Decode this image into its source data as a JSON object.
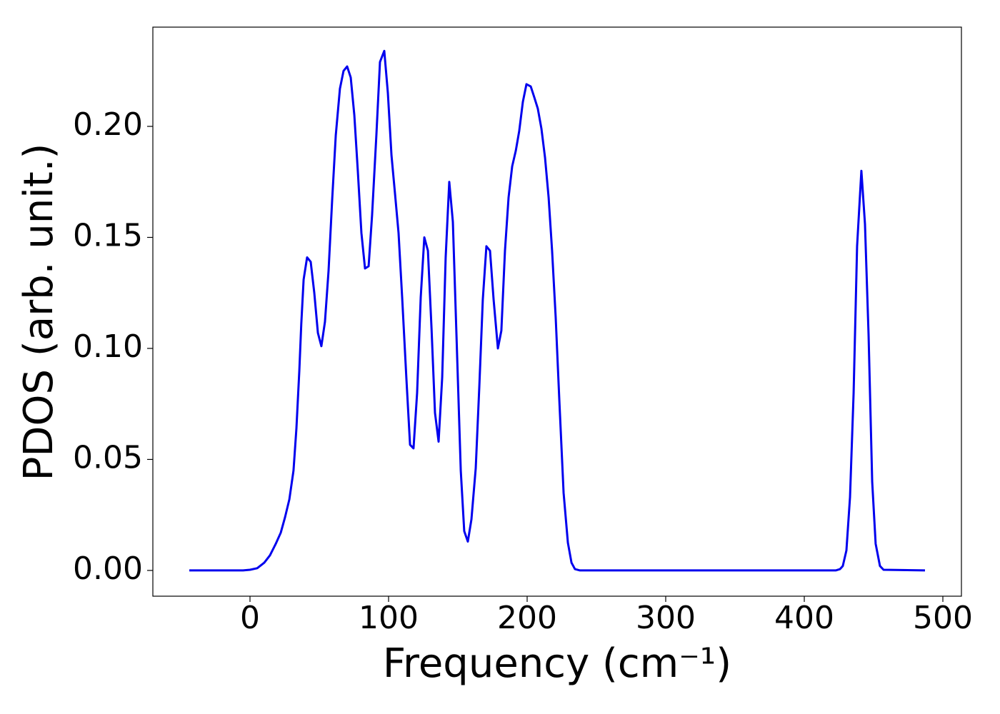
{
  "chart_data": {
    "type": "line",
    "xlabel": "Frequency (cm⁻¹)",
    "ylabel": "PDOS (arb. unit.)",
    "xlim": [
      -70.1,
      513.4
    ],
    "ylim": [
      -0.0116,
      0.2447
    ],
    "xticks": [
      0,
      100,
      200,
      300,
      400,
      500
    ],
    "yticks": [
      {
        "value": 0,
        "label": "0.00"
      },
      {
        "value": 0.05,
        "label": "0.05"
      },
      {
        "value": 0.1,
        "label": "0.10"
      },
      {
        "value": 0.15,
        "label": "0.15"
      },
      {
        "value": 0.2,
        "label": "0.20"
      }
    ],
    "x": [
      -43.8,
      -5,
      0,
      5.2,
      10.3,
      14.4,
      18.6,
      22.2,
      25.3,
      28.4,
      31.4,
      33.5,
      35.6,
      37,
      38.7,
      41.2,
      43.8,
      46.4,
      49.0,
      51.5,
      54.1,
      56.7,
      59.3,
      61.9,
      64.9,
      67.5,
      70.1,
      72.7,
      75.3,
      77.8,
      80.4,
      83.0,
      85.6,
      88.1,
      91.2,
      93.8,
      96.9,
      99.5,
      102.1,
      104.6,
      107.2,
      109.8,
      112.9,
      115.5,
      118.0,
      120.6,
      123.2,
      125.8,
      128.4,
      131.0,
      133.5,
      136.1,
      138.7,
      141.2,
      143.8,
      146.4,
      149.0,
      152.1,
      154.6,
      157.2,
      159.8,
      162.9,
      165.5,
      168.0,
      170.6,
      173.2,
      175.8,
      178.9,
      181.4,
      184.0,
      186.6,
      189.2,
      191.8,
      194.3,
      196.9,
      199.5,
      202.6,
      205.2,
      207.7,
      210.3,
      212.9,
      215.5,
      218.0,
      220.6,
      223.2,
      226.3,
      229.4,
      232.0,
      234.5,
      238.1,
      422.7,
      425.8,
      427.8,
      430.4,
      433.0,
      435.6,
      438.1,
      441.2,
      443.8,
      446.4,
      449.0,
      451.5,
      454.6,
      457.2,
      487.1
    ],
    "series": [
      {
        "name": "PDOS",
        "color": "#0000ee",
        "values": [
          0,
          0,
          0.0003,
          0.001,
          0.0035,
          0.0068,
          0.012,
          0.017,
          0.024,
          0.032,
          0.045,
          0.064,
          0.09,
          0.111,
          0.131,
          0.141,
          0.139,
          0.125,
          0.107,
          0.101,
          0.112,
          0.135,
          0.167,
          0.196,
          0.217,
          0.225,
          0.227,
          0.222,
          0.205,
          0.18,
          0.152,
          0.136,
          0.137,
          0.16,
          0.196,
          0.229,
          0.234,
          0.215,
          0.187,
          0.17,
          0.152,
          0.123,
          0.086,
          0.0566,
          0.055,
          0.08,
          0.123,
          0.15,
          0.144,
          0.109,
          0.071,
          0.058,
          0.087,
          0.141,
          0.175,
          0.157,
          0.106,
          0.045,
          0.0177,
          0.013,
          0.023,
          0.046,
          0.083,
          0.122,
          0.146,
          0.144,
          0.122,
          0.1,
          0.108,
          0.144,
          0.168,
          0.182,
          0.189,
          0.198,
          0.211,
          0.219,
          0.218,
          0.213,
          0.208,
          0.199,
          0.186,
          0.168,
          0.144,
          0.114,
          0.077,
          0.035,
          0.0125,
          0.0035,
          0.0006,
          0,
          0,
          0.0006,
          0.002,
          0.009,
          0.033,
          0.08,
          0.146,
          0.18,
          0.156,
          0.106,
          0.04,
          0.012,
          0.002,
          0.0003,
          0
        ]
      }
    ]
  }
}
